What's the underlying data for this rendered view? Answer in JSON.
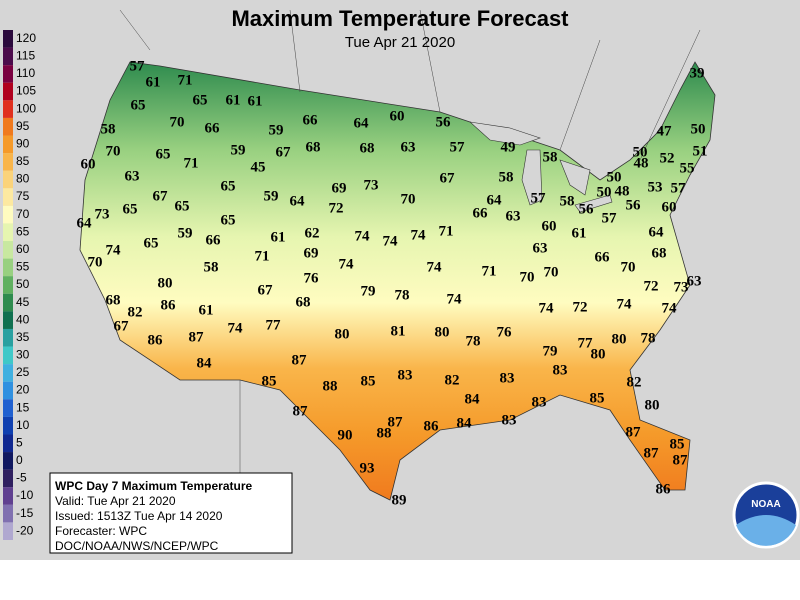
{
  "header": {
    "title": "Maximum Temperature Forecast",
    "subtitle": "Tue Apr 21 2020"
  },
  "legend": {
    "labels": [
      120,
      115,
      110,
      105,
      100,
      95,
      90,
      85,
      80,
      75,
      70,
      65,
      60,
      55,
      50,
      45,
      40,
      35,
      30,
      25,
      20,
      15,
      10,
      5,
      0,
      -5,
      -10,
      -15,
      -20
    ],
    "colors": [
      "#2b0a3d",
      "#4b0b4b",
      "#7a0040",
      "#b0001e",
      "#e0301e",
      "#f07a1e",
      "#f59a2a",
      "#f9b54a",
      "#fbd37a",
      "#fde9a0",
      "#fffcc0",
      "#e6f5b0",
      "#c8e8a0",
      "#98d080",
      "#60b060",
      "#2e8b4e",
      "#107050",
      "#2aa0a0",
      "#40c8c8",
      "#40b0e0",
      "#3090e0",
      "#2060d0",
      "#1040b0",
      "#102890",
      "#101860",
      "#302060",
      "#604090",
      "#8070b0",
      "#b0a8d0"
    ]
  },
  "info": {
    "title": "WPC Day 7 Maximum Temperature",
    "valid": "Valid: Tue Apr 21 2020",
    "issued": "Issued: 1513Z Tue Apr 14 2020",
    "forecaster": "Forecaster: WPC",
    "agency": "DOC/NOAA/NWS/NCEP/WPC"
  },
  "logo": "NOAA",
  "temperatures": [
    57,
    61,
    71,
    65,
    65,
    61,
    61,
    58,
    70,
    66,
    59,
    66,
    64,
    60,
    56,
    70,
    65,
    71,
    59,
    67,
    68,
    68,
    63,
    57,
    49,
    58,
    60,
    63,
    45,
    65,
    69,
    73,
    67,
    58,
    50,
    52,
    47,
    50,
    39,
    51,
    48,
    55,
    67,
    65,
    59,
    64,
    70,
    64,
    57,
    58,
    50,
    50,
    48,
    56,
    53,
    57,
    73,
    64,
    65,
    72,
    66,
    63,
    57,
    56,
    60,
    65,
    59,
    66,
    62,
    61,
    74,
    74,
    74,
    71,
    60,
    61,
    65,
    74,
    69,
    63,
    64,
    70,
    71,
    74,
    74,
    71,
    66,
    70,
    68,
    58,
    76,
    70,
    70,
    63,
    72,
    80,
    67,
    79,
    78,
    74,
    68,
    73,
    68,
    86,
    82,
    61,
    74,
    72,
    74,
    74,
    67,
    74,
    77,
    80,
    81,
    80,
    78,
    76,
    80,
    78,
    86,
    87,
    77,
    79,
    80,
    84,
    87,
    83,
    85,
    88,
    85,
    83,
    82,
    83,
    82,
    84,
    83,
    85,
    87,
    80,
    87,
    83,
    86,
    84,
    90,
    88,
    87,
    85,
    87,
    87,
    93,
    86,
    89
  ]
}
